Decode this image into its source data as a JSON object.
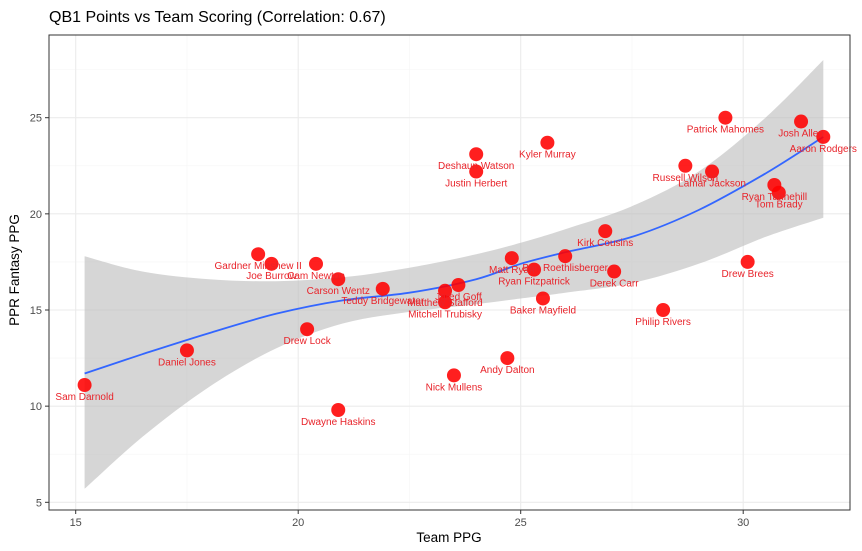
{
  "chart_data": {
    "type": "scatter",
    "title": "QB1 Points vs Team Scoring (Correlation: 0.67)",
    "xlabel": "Team PPG",
    "ylabel": "PPR Fantasy PPG",
    "xlim": [
      14.4,
      32.4
    ],
    "ylim": [
      4.6,
      29.3
    ],
    "x_ticks": [
      15,
      20,
      25,
      30
    ],
    "y_ticks": [
      5,
      10,
      15,
      20,
      25
    ],
    "grid": true,
    "colors": {
      "point": "#ff0000",
      "label": "#e8232a",
      "trend": "#3366ff",
      "band": "#bdbdbd",
      "border": "#333333",
      "grid_major": "#ebebeb",
      "grid_minor": "#f5f5f5"
    },
    "points": [
      {
        "name": "Sam Darnold",
        "x": 15.2,
        "y": 11.1
      },
      {
        "name": "Daniel Jones",
        "x": 17.5,
        "y": 12.9
      },
      {
        "name": "Gardner Minshew II",
        "x": 19.1,
        "y": 17.9
      },
      {
        "name": "Joe Burrow",
        "x": 19.4,
        "y": 17.4
      },
      {
        "name": "Drew Lock",
        "x": 20.2,
        "y": 14.0
      },
      {
        "name": "Cam Newton",
        "x": 20.4,
        "y": 17.4
      },
      {
        "name": "Dwayne Haskins",
        "x": 20.9,
        "y": 9.8
      },
      {
        "name": "Carson Wentz",
        "x": 20.9,
        "y": 16.6
      },
      {
        "name": "Teddy Bridgewater",
        "x": 21.9,
        "y": 16.1
      },
      {
        "name": "Matthew Stafford",
        "x": 23.3,
        "y": 16.0
      },
      {
        "name": "Mitchell Trubisky",
        "x": 23.3,
        "y": 15.4
      },
      {
        "name": "Jared Goff",
        "x": 23.6,
        "y": 16.3
      },
      {
        "name": "Nick Mullens",
        "x": 23.5,
        "y": 11.6
      },
      {
        "name": "Deshaun Watson",
        "x": 24.0,
        "y": 23.1
      },
      {
        "name": "Justin Herbert",
        "x": 24.0,
        "y": 22.2
      },
      {
        "name": "Andy Dalton",
        "x": 24.7,
        "y": 12.5
      },
      {
        "name": "Matt Ryan",
        "x": 24.8,
        "y": 17.7
      },
      {
        "name": "Ryan Fitzpatrick",
        "x": 25.3,
        "y": 17.1
      },
      {
        "name": "Ben Roethlisberger",
        "x": 26.0,
        "y": 17.8
      },
      {
        "name": "Baker Mayfield",
        "x": 25.5,
        "y": 15.6
      },
      {
        "name": "Kyler Murray",
        "x": 25.6,
        "y": 23.7
      },
      {
        "name": "Kirk Cousins",
        "x": 26.9,
        "y": 19.1
      },
      {
        "name": "Derek Carr",
        "x": 27.1,
        "y": 17.0
      },
      {
        "name": "Philip Rivers",
        "x": 28.2,
        "y": 15.0
      },
      {
        "name": "Russell Wilson",
        "x": 28.7,
        "y": 22.5
      },
      {
        "name": "Lamar Jackson",
        "x": 29.3,
        "y": 22.2
      },
      {
        "name": "Patrick Mahomes",
        "x": 29.6,
        "y": 25.0
      },
      {
        "name": "Drew Brees",
        "x": 30.1,
        "y": 17.5
      },
      {
        "name": "Ryan Tannehill",
        "x": 30.7,
        "y": 21.5
      },
      {
        "name": "Tom Brady",
        "x": 30.8,
        "y": 21.1
      },
      {
        "name": "Josh Allen",
        "x": 31.3,
        "y": 24.8
      },
      {
        "name": "Aaron Rodgers",
        "x": 31.8,
        "y": 24.0
      }
    ],
    "trend": {
      "x": [
        15.2,
        16.5,
        18,
        19.5,
        21,
        22.5,
        24,
        25,
        26,
        27.5,
        29,
        30.5,
        31.8
      ],
      "y": [
        11.7,
        12.7,
        13.8,
        14.8,
        15.5,
        15.9,
        16.6,
        17.4,
        18.0,
        18.8,
        20.2,
        22.1,
        24.0
      ],
      "upper": [
        17.8,
        17.0,
        16.6,
        16.5,
        16.7,
        17.2,
        17.9,
        18.5,
        19.2,
        20.4,
        22.2,
        25.0,
        28.0
      ],
      "lower": [
        5.7,
        8.4,
        11.0,
        13.0,
        14.3,
        14.9,
        15.3,
        15.6,
        15.9,
        16.4,
        17.4,
        18.8,
        19.8
      ]
    }
  }
}
